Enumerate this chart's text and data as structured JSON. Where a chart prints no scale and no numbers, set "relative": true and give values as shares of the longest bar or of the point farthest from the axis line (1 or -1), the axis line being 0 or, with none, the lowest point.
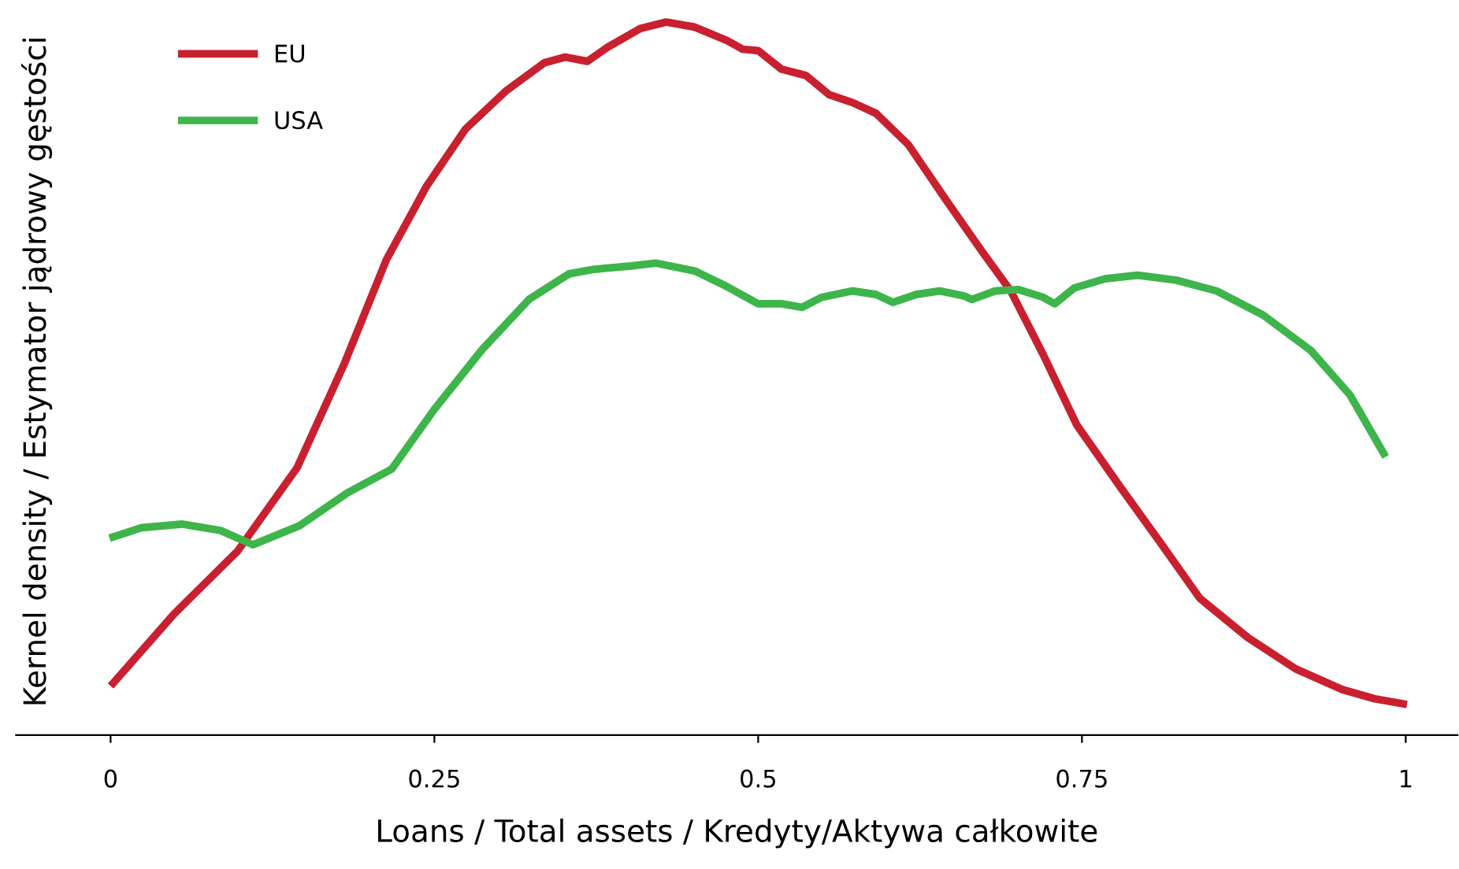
{
  "chart_data": {
    "type": "line",
    "relative": true,
    "xlabel": "Loans / Total assets / Kredyty/Aktywa całkowite",
    "ylabel": "Kernel density / Estymator jądrowy gęstości",
    "xlim": [
      -0.073,
      1.04
    ],
    "xticks": [
      0,
      0.25,
      0.5,
      0.75,
      1
    ],
    "grid": false,
    "legend": "top left",
    "marker": "none",
    "line_style": "solid",
    "series": [
      {
        "name": "EU",
        "color": "#c8202f",
        "x": [
          0.002,
          0.049,
          0.098,
          0.144,
          0.18,
          0.213,
          0.244,
          0.274,
          0.305,
          0.335,
          0.351,
          0.368,
          0.384,
          0.409,
          0.429,
          0.451,
          0.476,
          0.488,
          0.5,
          0.518,
          0.537,
          0.555,
          0.573,
          0.591,
          0.616,
          0.646,
          0.673,
          0.695,
          0.72,
          0.746,
          0.78,
          0.811,
          0.841,
          0.878,
          0.915,
          0.951,
          0.976,
          0.998
        ],
        "values": [
          0.073,
          0.17,
          0.258,
          0.375,
          0.519,
          0.667,
          0.77,
          0.85,
          0.903,
          0.943,
          0.951,
          0.945,
          0.965,
          0.991,
          1.0,
          0.993,
          0.974,
          0.962,
          0.96,
          0.934,
          0.925,
          0.898,
          0.887,
          0.872,
          0.828,
          0.748,
          0.678,
          0.623,
          0.534,
          0.435,
          0.347,
          0.269,
          0.192,
          0.137,
          0.093,
          0.064,
          0.051,
          0.044
        ]
      },
      {
        "name": "USA",
        "color": "#3db54a",
        "x": [
          0.002,
          0.024,
          0.055,
          0.085,
          0.11,
          0.146,
          0.183,
          0.217,
          0.25,
          0.287,
          0.323,
          0.354,
          0.372,
          0.402,
          0.421,
          0.451,
          0.476,
          0.5,
          0.518,
          0.534,
          0.549,
          0.573,
          0.591,
          0.604,
          0.622,
          0.64,
          0.659,
          0.665,
          0.683,
          0.701,
          0.72,
          0.729,
          0.744,
          0.768,
          0.793,
          0.823,
          0.854,
          0.89,
          0.927,
          0.957,
          0.983
        ],
        "values": [
          0.278,
          0.291,
          0.296,
          0.287,
          0.267,
          0.294,
          0.34,
          0.373,
          0.457,
          0.541,
          0.611,
          0.647,
          0.653,
          0.658,
          0.662,
          0.651,
          0.629,
          0.605,
          0.605,
          0.6,
          0.614,
          0.623,
          0.618,
          0.607,
          0.618,
          0.623,
          0.616,
          0.611,
          0.623,
          0.625,
          0.614,
          0.605,
          0.627,
          0.64,
          0.645,
          0.638,
          0.623,
          0.589,
          0.539,
          0.477,
          0.395
        ]
      }
    ]
  }
}
